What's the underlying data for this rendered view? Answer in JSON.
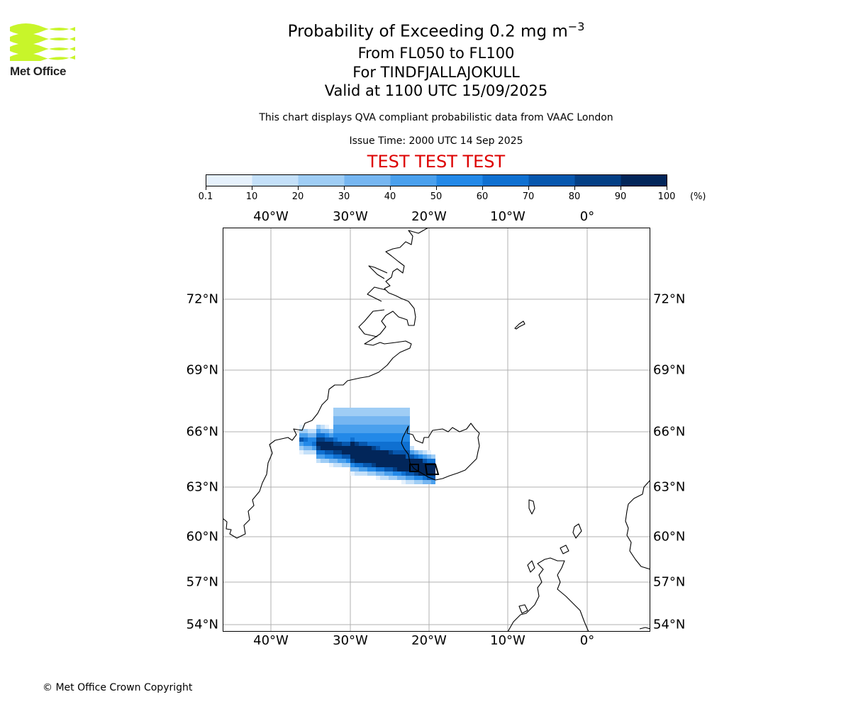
{
  "header": {
    "logo_text": "Met Office",
    "title": "Probability of Exceeding 0.2 mg m",
    "title_superscript": "−3",
    "levels": "From FL050 to FL100",
    "volcano": "For TINDFJALLAJOKULL",
    "valid": "Valid at 1100 UTC 15/09/2025",
    "note": "This chart displays QVA compliant probabilistic data from VAAC London",
    "issue": "Issue Time: 2000 UTC 14 Sep 2025",
    "test": "TEST TEST TEST",
    "test_color": "#dd0000"
  },
  "colorbar": {
    "labels": [
      "0.1",
      "10",
      "20",
      "30",
      "40",
      "50",
      "60",
      "70",
      "80",
      "90",
      "100"
    ],
    "unit": "(%)",
    "colors": [
      "#e6f1fc",
      "#c4e0f9",
      "#9fcdf5",
      "#76b6f1",
      "#4aa0ed",
      "#2389e8",
      "#0f70d1",
      "#0757ae",
      "#033f85",
      "#02265a"
    ]
  },
  "map": {
    "lon_labels": [
      "40°W",
      "30°W",
      "20°W",
      "10°W",
      "0°"
    ],
    "lat_labels": [
      "72°N",
      "69°N",
      "66°N",
      "63°N",
      "60°N",
      "57°N",
      "54°N"
    ]
  },
  "footer": {
    "copyright": "© Met Office Crown Copyright"
  }
}
